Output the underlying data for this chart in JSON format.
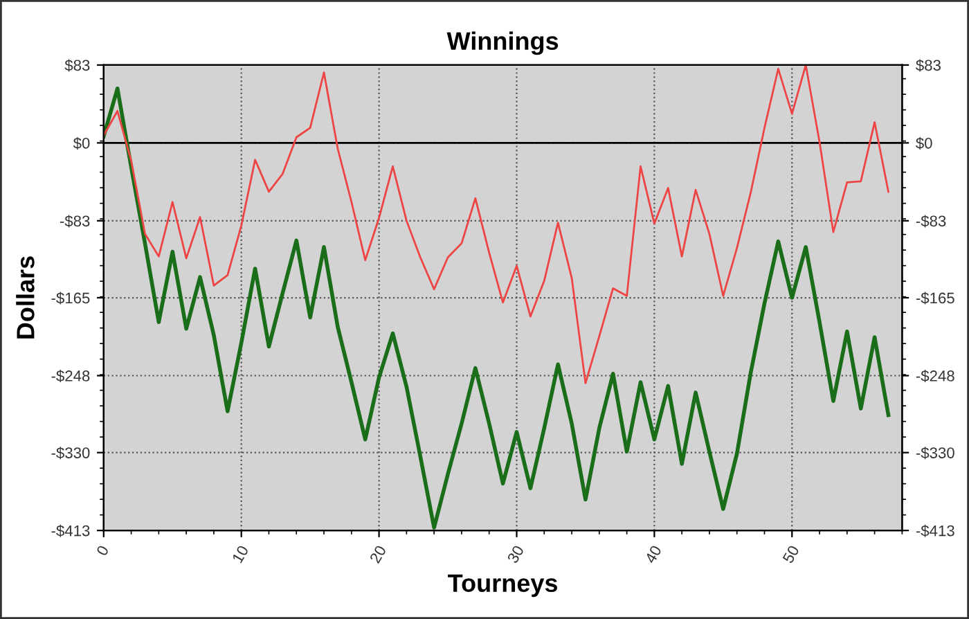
{
  "chart_data": {
    "type": "line",
    "title": "Winnings",
    "xlabel": "Tourneys",
    "ylabel": "Dollars",
    "x": [
      0,
      1,
      2,
      3,
      4,
      5,
      6,
      7,
      8,
      9,
      10,
      11,
      12,
      13,
      14,
      15,
      16,
      17,
      18,
      19,
      20,
      21,
      22,
      23,
      24,
      25,
      26,
      27,
      28,
      29,
      30,
      31,
      32,
      33,
      34,
      35,
      36,
      37,
      38,
      39,
      40,
      41,
      42,
      43,
      44,
      45,
      46,
      47,
      48,
      49,
      50,
      51,
      52,
      53,
      54,
      55,
      56,
      57
    ],
    "series": [
      {
        "color": "#ee4444",
        "values": [
          8,
          34,
          -19,
          -97,
          -121,
          -63,
          -123,
          -79,
          -152,
          -141,
          -88,
          -18,
          -52,
          -33,
          6,
          16,
          75,
          -6,
          -63,
          -125,
          -80,
          -25,
          -83,
          -122,
          -156,
          -122,
          -107,
          -59,
          -117,
          -170,
          -131,
          -185,
          -147,
          -85,
          -144,
          -256,
          -206,
          -155,
          -163,
          -25,
          -86,
          -48,
          -121,
          -50,
          -97,
          -163,
          -112,
          -53,
          16,
          79,
          31,
          83,
          1,
          -95,
          -42,
          -41,
          22,
          -52
        ]
      },
      {
        "color": "#1a6e1a",
        "values": [
          7,
          58,
          -26,
          -107,
          -191,
          -116,
          -198,
          -143,
          -205,
          -286,
          -213,
          -134,
          -217,
          -160,
          -104,
          -186,
          -111,
          -196,
          -255,
          -316,
          -250,
          -203,
          -260,
          -334,
          -410,
          -353,
          -299,
          -240,
          -299,
          -363,
          -308,
          -368,
          -304,
          -236,
          -299,
          -380,
          -304,
          -246,
          -329,
          -255,
          -316,
          -259,
          -342,
          -266,
          -329,
          -390,
          -331,
          -245,
          -171,
          -105,
          -165,
          -111,
          -191,
          -275,
          -201,
          -283,
          -207,
          -290
        ]
      }
    ],
    "xlim": [
      0,
      58
    ],
    "xticks": [
      0,
      10,
      20,
      30,
      40,
      50
    ],
    "ylim": [
      -413,
      83
    ],
    "yticks": [
      {
        "value": 83,
        "label": "$83"
      },
      {
        "value": 0,
        "label": "$0"
      },
      {
        "value": -83,
        "label": "-$83"
      },
      {
        "value": -165,
        "label": "-$165"
      },
      {
        "value": -248,
        "label": "-$248"
      },
      {
        "value": -330,
        "label": "-$330"
      },
      {
        "value": -413,
        "label": "-$413"
      }
    ],
    "y2lim": [
      -413,
      83
    ],
    "y2ticks": [
      {
        "value": 83,
        "label": "$83"
      },
      {
        "value": 0,
        "label": "$0"
      },
      {
        "value": -83,
        "label": "-$83"
      },
      {
        "value": -165,
        "label": "-$165"
      },
      {
        "value": -248,
        "label": "-$248"
      },
      {
        "value": -330,
        "label": "-$330"
      },
      {
        "value": -413,
        "label": "-$413"
      }
    ],
    "ref_lines": [
      {
        "axis": "y",
        "value": 0,
        "color": "#000000",
        "line_style": "solid"
      }
    ],
    "grid": true,
    "legend": false,
    "marker": "none",
    "line_style": "solid"
  }
}
